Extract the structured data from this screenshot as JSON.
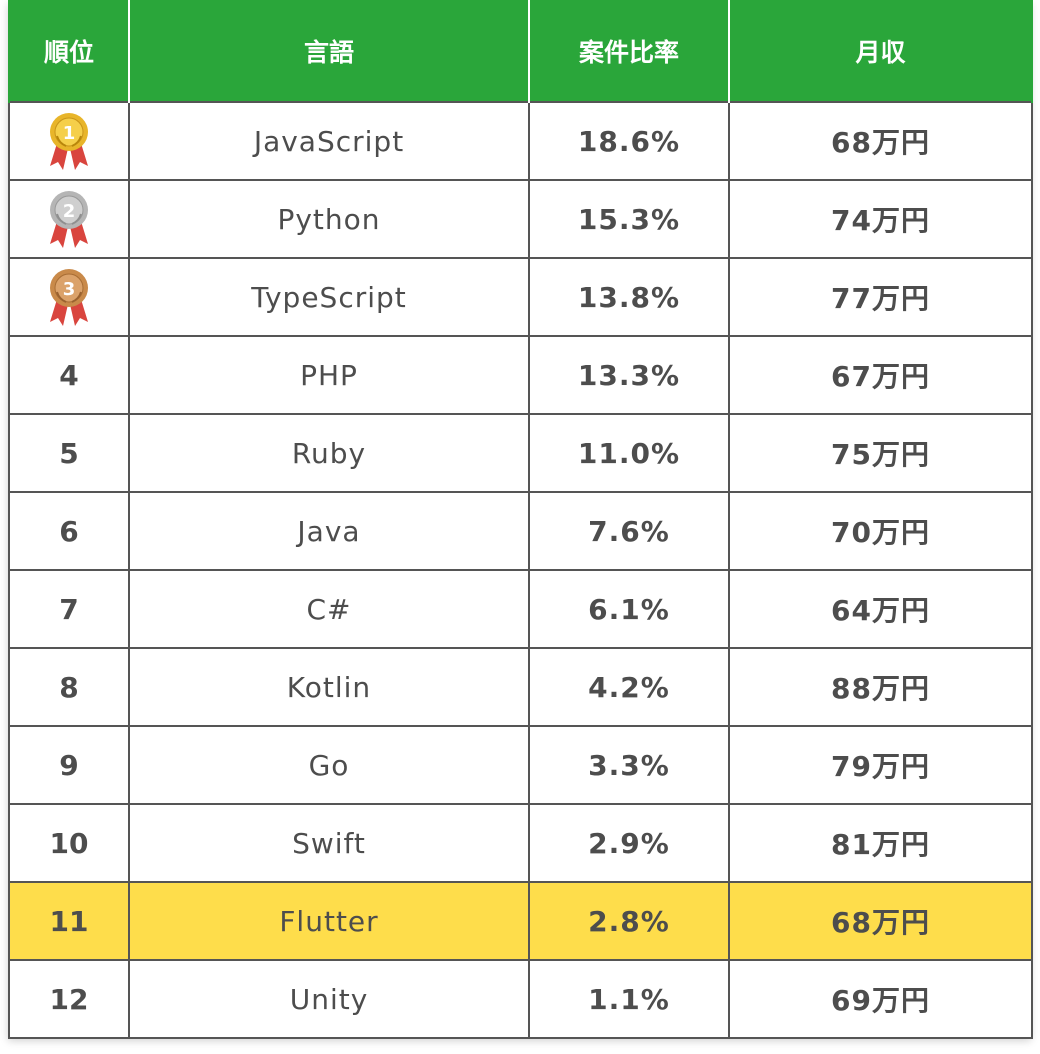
{
  "headers": {
    "rank": "順位",
    "language": "言語",
    "ratio": "案件比率",
    "income": "月収"
  },
  "colors": {
    "header_bg": "#2aa63a",
    "highlight_bg": "#fedd4b",
    "gold": "#e8b52a",
    "silver": "#b5b5b5",
    "bronze": "#c98a4a",
    "ribbon": "#d9453e"
  },
  "rows": [
    {
      "rank": "1",
      "medal": "gold-medal-icon",
      "language": "JavaScript",
      "ratio": "18.6%",
      "income": "68万円"
    },
    {
      "rank": "2",
      "medal": "silver-medal-icon",
      "language": "Python",
      "ratio": "15.3%",
      "income": "74万円"
    },
    {
      "rank": "3",
      "medal": "bronze-medal-icon",
      "language": "TypeScript",
      "ratio": "13.8%",
      "income": "77万円"
    },
    {
      "rank": "4",
      "language": "PHP",
      "ratio": "13.3%",
      "income": "67万円"
    },
    {
      "rank": "5",
      "language": "Ruby",
      "ratio": "11.0%",
      "income": "75万円"
    },
    {
      "rank": "6",
      "language": "Java",
      "ratio": "7.6%",
      "income": "70万円"
    },
    {
      "rank": "7",
      "language": "C#",
      "ratio": "6.1%",
      "income": "64万円"
    },
    {
      "rank": "8",
      "language": "Kotlin",
      "ratio": "4.2%",
      "income": "88万円"
    },
    {
      "rank": "9",
      "language": "Go",
      "ratio": "3.3%",
      "income": "79万円"
    },
    {
      "rank": "10",
      "language": "Swift",
      "ratio": "2.9%",
      "income": "81万円"
    },
    {
      "rank": "11",
      "language": "Flutter",
      "ratio": "2.8%",
      "income": "68万円"
    },
    {
      "rank": "12",
      "language": "Unity",
      "ratio": "1.1%",
      "income": "69万円"
    }
  ]
}
